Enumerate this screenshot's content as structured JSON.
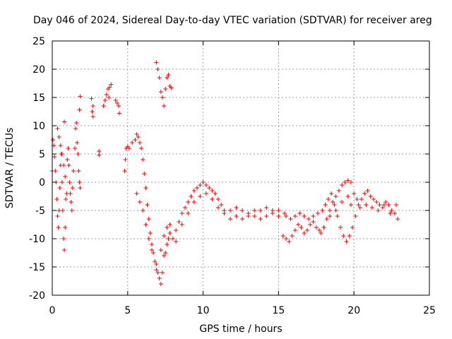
{
  "chart_data": {
    "type": "scatter",
    "title": "Day 046 of 2024, Sidereal Day-to-day VTEC variation (SDTVAR) for receiver areg",
    "xlabel": "GPS time / hours",
    "ylabel": "SDTVAR / TECUs",
    "xlim": [
      0,
      25
    ],
    "ylim": [
      -20,
      25
    ],
    "x_ticks": [
      0,
      5,
      10,
      15,
      20,
      25
    ],
    "y_ticks": [
      -20,
      -15,
      -10,
      -5,
      0,
      5,
      10,
      15,
      20,
      25
    ],
    "grid": true,
    "marker": "+",
    "color": "#ff0000",
    "series": [
      {
        "name": "SDTVAR",
        "points": [
          [
            0.0,
            2.0
          ],
          [
            0.05,
            7.5
          ],
          [
            0.1,
            6.5
          ],
          [
            0.15,
            4.5
          ],
          [
            0.2,
            2.0
          ],
          [
            0.25,
            0.0
          ],
          [
            0.3,
            -3.0
          ],
          [
            0.35,
            -6.0
          ],
          [
            0.4,
            -8.0
          ],
          [
            0.45,
            -5.0
          ],
          [
            0.5,
            -1.0
          ],
          [
            0.55,
            3.0
          ],
          [
            0.6,
            5.0
          ],
          [
            0.65,
            0.0
          ],
          [
            0.7,
            -5.0
          ],
          [
            0.75,
            -10.0
          ],
          [
            0.8,
            -12.0
          ],
          [
            0.85,
            -8.0
          ],
          [
            0.9,
            -3.0
          ],
          [
            0.35,
            9.5
          ],
          [
            0.45,
            8.0
          ],
          [
            0.55,
            6.5
          ],
          [
            0.65,
            5.0
          ],
          [
            0.75,
            3.0
          ],
          [
            0.85,
            1.0
          ],
          [
            0.95,
            -2.0
          ],
          [
            1.0,
            4.0
          ],
          [
            1.05,
            6.0
          ],
          [
            1.1,
            3.0
          ],
          [
            1.15,
            0.0
          ],
          [
            1.2,
            -2.0
          ],
          [
            1.25,
            -3.5
          ],
          [
            1.3,
            -5.0
          ],
          [
            1.35,
            -1.0
          ],
          [
            1.4,
            2.0
          ],
          [
            1.5,
            6.0
          ],
          [
            1.55,
            9.5
          ],
          [
            1.6,
            10.5
          ],
          [
            1.65,
            7.0
          ],
          [
            1.7,
            5.0
          ],
          [
            1.75,
            2.0
          ],
          [
            1.8,
            0.0
          ],
          [
            1.85,
            -1.0
          ],
          [
            0.8,
            10.7
          ],
          [
            1.85,
            15.2
          ],
          [
            1.8,
            12.8
          ],
          [
            2.6,
            14.8
          ],
          [
            2.7,
            13.5
          ],
          [
            2.65,
            12.5
          ],
          [
            2.7,
            11.6
          ],
          [
            3.1,
            5.5
          ],
          [
            3.1,
            4.8
          ],
          [
            3.4,
            13.5
          ],
          [
            3.5,
            14.5
          ],
          [
            3.6,
            15.5
          ],
          [
            3.7,
            16.5
          ],
          [
            3.8,
            16.8
          ],
          [
            3.9,
            17.3
          ],
          [
            3.75,
            15.0
          ],
          [
            4.2,
            14.5
          ],
          [
            4.3,
            14.0
          ],
          [
            4.4,
            13.5
          ],
          [
            4.45,
            12.2
          ],
          [
            4.8,
            2.0
          ],
          [
            4.85,
            4.0
          ],
          [
            4.9,
            6.0
          ],
          [
            5.0,
            6.3
          ],
          [
            5.1,
            6.0
          ],
          [
            5.3,
            7.0
          ],
          [
            5.5,
            7.5
          ],
          [
            5.6,
            8.5
          ],
          [
            5.7,
            8.0
          ],
          [
            5.8,
            7.0
          ],
          [
            5.9,
            6.0
          ],
          [
            6.0,
            4.0
          ],
          [
            6.1,
            1.5
          ],
          [
            6.2,
            -1.0
          ],
          [
            6.3,
            -4.0
          ],
          [
            6.4,
            -6.5
          ],
          [
            6.5,
            -9.0
          ],
          [
            6.6,
            -11.0
          ],
          [
            6.7,
            -12.5
          ],
          [
            6.8,
            -14.0
          ],
          [
            6.9,
            -15.5
          ],
          [
            7.0,
            -16.0
          ],
          [
            7.1,
            -17.0
          ],
          [
            7.2,
            -18.0
          ],
          [
            7.3,
            -16.0
          ],
          [
            7.4,
            -13.0
          ],
          [
            7.5,
            -12.5
          ],
          [
            7.6,
            -11.0
          ],
          [
            7.7,
            -10.0
          ],
          [
            7.8,
            -9.0
          ],
          [
            5.6,
            -2.0
          ],
          [
            5.8,
            -3.5
          ],
          [
            6.0,
            -5.0
          ],
          [
            6.2,
            -7.5
          ],
          [
            6.4,
            -10.0
          ],
          [
            6.6,
            -12.0
          ],
          [
            6.9,
            -14.5
          ],
          [
            7.2,
            -12.0
          ],
          [
            7.4,
            -9.5
          ],
          [
            7.6,
            -8.0
          ],
          [
            7.8,
            -7.5
          ],
          [
            6.9,
            21.2
          ],
          [
            7.0,
            20.0
          ],
          [
            7.1,
            18.5
          ],
          [
            7.2,
            16.0
          ],
          [
            7.3,
            15.0
          ],
          [
            7.4,
            13.5
          ],
          [
            7.5,
            16.5
          ],
          [
            7.6,
            18.5
          ],
          [
            7.7,
            19.0
          ],
          [
            7.8,
            17.0
          ],
          [
            7.9,
            16.7
          ],
          [
            8.0,
            -10.0
          ],
          [
            8.2,
            -8.5
          ],
          [
            8.4,
            -7.0
          ],
          [
            8.6,
            -5.5
          ],
          [
            8.8,
            -4.5
          ],
          [
            9.0,
            -3.5
          ],
          [
            9.2,
            -2.5
          ],
          [
            9.4,
            -1.5
          ],
          [
            9.6,
            -1.0
          ],
          [
            9.8,
            -0.5
          ],
          [
            10.0,
            0.0
          ],
          [
            10.2,
            -0.5
          ],
          [
            10.4,
            -1.0
          ],
          [
            10.6,
            -1.5
          ],
          [
            10.8,
            -2.0
          ],
          [
            11.0,
            -3.0
          ],
          [
            11.2,
            -4.0
          ],
          [
            11.4,
            -5.0
          ],
          [
            8.2,
            -10.5
          ],
          [
            8.6,
            -7.5
          ],
          [
            9.0,
            -5.5
          ],
          [
            9.4,
            -3.5
          ],
          [
            9.8,
            -2.5
          ],
          [
            10.2,
            -2.0
          ],
          [
            10.6,
            -3.0
          ],
          [
            11.0,
            -4.5
          ],
          [
            11.4,
            -5.5
          ],
          [
            11.8,
            -5.0
          ],
          [
            12.2,
            -4.5
          ],
          [
            12.6,
            -5.0
          ],
          [
            13.0,
            -5.5
          ],
          [
            13.4,
            -6.0
          ],
          [
            13.8,
            -5.0
          ],
          [
            14.2,
            -4.5
          ],
          [
            14.6,
            -5.5
          ],
          [
            15.0,
            -6.0
          ],
          [
            15.4,
            -5.5
          ],
          [
            11.8,
            -6.5
          ],
          [
            12.2,
            -6.0
          ],
          [
            12.6,
            -6.5
          ],
          [
            13.0,
            -6.0
          ],
          [
            13.4,
            -5.0
          ],
          [
            13.8,
            -6.5
          ],
          [
            14.2,
            -6.0
          ],
          [
            14.6,
            -5.0
          ],
          [
            15.0,
            -5.0
          ],
          [
            15.3,
            -9.5
          ],
          [
            15.5,
            -10.0
          ],
          [
            15.7,
            -10.5
          ],
          [
            15.9,
            -9.5
          ],
          [
            16.1,
            -8.5
          ],
          [
            16.3,
            -7.5
          ],
          [
            16.5,
            -8.0
          ],
          [
            16.7,
            -9.0
          ],
          [
            16.9,
            -8.5
          ],
          [
            17.1,
            -7.5
          ],
          [
            17.3,
            -7.0
          ],
          [
            17.5,
            -8.0
          ],
          [
            17.7,
            -8.5
          ],
          [
            15.5,
            -6.0
          ],
          [
            15.8,
            -6.5
          ],
          [
            16.1,
            -6.0
          ],
          [
            16.4,
            -5.5
          ],
          [
            16.7,
            -6.0
          ],
          [
            17.0,
            -6.5
          ],
          [
            17.3,
            -6.0
          ],
          [
            17.6,
            -5.5
          ],
          [
            17.8,
            -9.0
          ],
          [
            18.0,
            -8.0
          ],
          [
            18.2,
            -6.5
          ],
          [
            18.4,
            -5.0
          ],
          [
            18.6,
            -3.5
          ],
          [
            18.8,
            -2.5
          ],
          [
            19.0,
            -1.5
          ],
          [
            19.2,
            -0.5
          ],
          [
            19.4,
            0.0
          ],
          [
            19.6,
            0.3
          ],
          [
            19.8,
            0.0
          ],
          [
            17.9,
            -5.0
          ],
          [
            18.1,
            -4.0
          ],
          [
            18.3,
            -3.0
          ],
          [
            18.5,
            -2.0
          ],
          [
            18.7,
            -4.0
          ],
          [
            18.9,
            -6.0
          ],
          [
            19.1,
            -8.0
          ],
          [
            19.3,
            -9.5
          ],
          [
            19.5,
            -10.5
          ],
          [
            19.7,
            -9.5
          ],
          [
            19.9,
            -8.0
          ],
          [
            20.1,
            -6.0
          ],
          [
            20.3,
            -4.0
          ],
          [
            20.5,
            -3.0
          ],
          [
            20.7,
            -2.0
          ],
          [
            20.9,
            -1.5
          ],
          [
            21.1,
            -2.5
          ],
          [
            21.3,
            -3.0
          ],
          [
            21.5,
            -3.5
          ],
          [
            21.7,
            -4.0
          ],
          [
            21.9,
            -4.5
          ],
          [
            22.1,
            -3.5
          ],
          [
            22.3,
            -4.0
          ],
          [
            22.5,
            -5.0
          ],
          [
            22.7,
            -5.5
          ],
          [
            22.9,
            -6.5
          ],
          [
            18.4,
            -6.0
          ],
          [
            18.8,
            -5.0
          ],
          [
            19.2,
            -3.5
          ],
          [
            19.6,
            -2.5
          ],
          [
            19.8,
            -4.0
          ],
          [
            20.0,
            -2.0
          ],
          [
            20.2,
            -3.0
          ],
          [
            20.4,
            -4.5
          ],
          [
            20.8,
            -4.0
          ],
          [
            21.2,
            -4.5
          ],
          [
            21.6,
            -5.0
          ],
          [
            22.0,
            -4.0
          ],
          [
            22.4,
            -5.5
          ],
          [
            22.8,
            -4.0
          ]
        ]
      }
    ]
  }
}
